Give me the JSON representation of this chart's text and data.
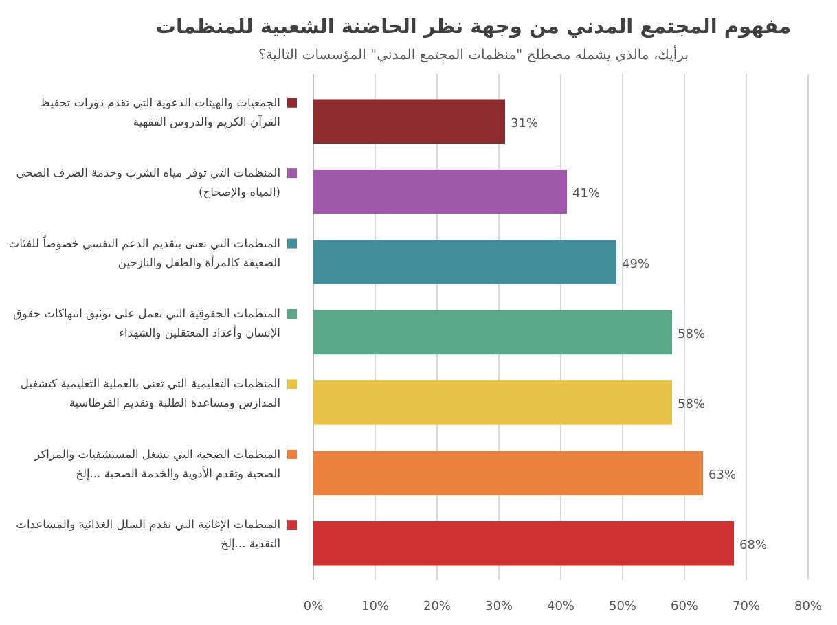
{
  "chart_data": {
    "type": "bar",
    "orientation": "horizontal",
    "title": "مفهوم المجتمع المدني من وجهة نظر الحاضنة الشعبية للمنظمات",
    "subtitle": "برأيك، مالذي يشمله مصطلح \"منظمات المجتمع المدني\" المؤسسات التالية؟",
    "categories": [
      "الجمعيات والهيئات الدعوية التي تقدم دورات تحفيظ القرآن الكريم والدروس الفقهية",
      "المنظمات التي توفر مياه الشرب وخدمة الصرف الصحي (المياه والإصحاح)",
      "المنظمات التي تعنى بتقديم الدعم النفسي خصوصاً للفئات الضعيفة كالمرأة والطفل والنازحين",
      "المنظمات الحقوقية التي تعمل على توثيق انتهاكات حقوق الإنسان وأعداد المعتقلين والشهداء",
      "المنظمات التعليمية التي تعنى بالعملية التعليمية كتشغيل المدارس ومساعدة الطلبة وتقديم القرطاسية",
      "المنظمات الصحية التي تشغل المستشفيات والمراكز الصحية وتقدم الأدوية والخدمة الصحية ...إلخ",
      "المنظمات الإغاثية التي تقدم السلل الغذائية والمساعدات النقدية ...إلخ"
    ],
    "values": [
      31,
      41,
      49,
      58,
      58,
      63,
      68
    ],
    "value_labels": [
      "31%",
      "41%",
      "49%",
      "58%",
      "58%",
      "63%",
      "68%"
    ],
    "colors": [
      "#8c2a2d",
      "#9e5aa9",
      "#418d98",
      "#5ba98b",
      "#e9c144",
      "#e9803c",
      "#cf3232"
    ],
    "xlim": [
      0,
      80
    ],
    "xticks": [
      {
        "value": 0,
        "label": "0%"
      },
      {
        "value": 10,
        "label": "10%"
      },
      {
        "value": 20,
        "label": "20%"
      },
      {
        "value": 30,
        "label": "30%"
      },
      {
        "value": 40,
        "label": "40%"
      },
      {
        "value": 50,
        "label": "50%"
      },
      {
        "value": 60,
        "label": "60%"
      },
      {
        "value": 70,
        "label": "70%"
      },
      {
        "value": 80,
        "label": "80%"
      }
    ],
    "grid": "x"
  }
}
